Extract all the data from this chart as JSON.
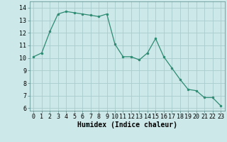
{
  "x": [
    0,
    1,
    2,
    3,
    4,
    5,
    6,
    7,
    8,
    9,
    10,
    11,
    12,
    13,
    14,
    15,
    16,
    17,
    18,
    19,
    20,
    21,
    22,
    23
  ],
  "y": [
    10.1,
    10.4,
    12.1,
    13.5,
    13.7,
    13.6,
    13.5,
    13.4,
    13.3,
    13.5,
    11.1,
    10.1,
    10.1,
    9.85,
    10.4,
    11.55,
    10.1,
    9.2,
    8.3,
    7.5,
    7.4,
    6.85,
    6.85,
    6.2
  ],
  "line_color": "#2d8b72",
  "marker_color": "#2d8b72",
  "bg_color": "#cce8e8",
  "grid_color": "#aacccc",
  "xlabel": "Humidex (Indice chaleur)",
  "xlim": [
    -0.5,
    23.5
  ],
  "ylim": [
    5.8,
    14.5
  ],
  "xticks": [
    0,
    1,
    2,
    3,
    4,
    5,
    6,
    7,
    8,
    9,
    10,
    11,
    12,
    13,
    14,
    15,
    16,
    17,
    18,
    19,
    20,
    21,
    22,
    23
  ],
  "yticks": [
    6,
    7,
    8,
    9,
    10,
    11,
    12,
    13,
    14
  ],
  "font_size_label": 7,
  "font_size_tick": 6
}
